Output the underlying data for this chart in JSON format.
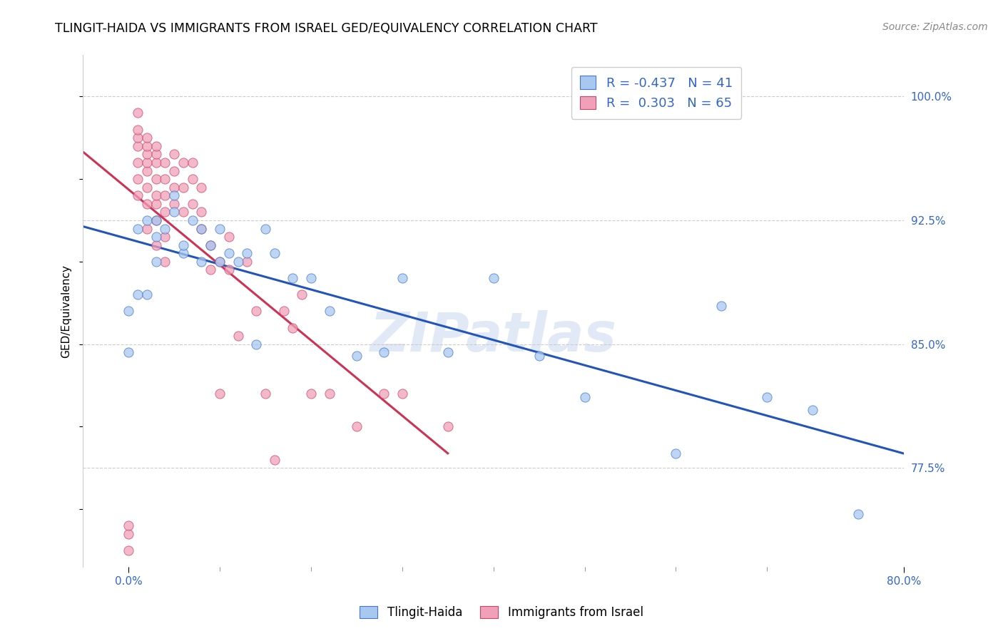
{
  "title": "TLINGIT-HAIDA VS IMMIGRANTS FROM ISRAEL GED/EQUIVALENCY CORRELATION CHART",
  "source": "Source: ZipAtlas.com",
  "ylabel": "GED/Equivalency",
  "legend_labels": [
    "Tlingit-Haida",
    "Immigrants from Israel"
  ],
  "legend_R": [
    "-0.437",
    "0.303"
  ],
  "legend_N": [
    "41",
    "65"
  ],
  "blue_fill": "#A8C8F0",
  "blue_edge": "#4477CC",
  "pink_fill": "#F0A0B8",
  "pink_edge": "#CC4466",
  "blue_line": "#2255BB",
  "pink_line": "#CC3355",
  "watermark": "ZIPatlas",
  "xlim": [
    -0.005,
    0.085
  ],
  "ylim": [
    0.715,
    1.025
  ],
  "x_tick_vals": [
    0.0,
    0.02,
    0.04,
    0.06,
    0.08
  ],
  "x_tick_labels": [
    "0.0%",
    "",
    "",
    "",
    ""
  ],
  "y_tick_vals": [
    0.775,
    0.85,
    0.925,
    1.0
  ],
  "y_tick_labels": [
    "77.5%",
    "85.0%",
    "92.5%",
    "100.0%"
  ],
  "tlingit_x": [
    0.0,
    0.0,
    0.001,
    0.001,
    0.002,
    0.002,
    0.003,
    0.003,
    0.003,
    0.004,
    0.005,
    0.005,
    0.006,
    0.006,
    0.007,
    0.008,
    0.008,
    0.009,
    0.01,
    0.01,
    0.011,
    0.012,
    0.013,
    0.014,
    0.015,
    0.016,
    0.018,
    0.02,
    0.022,
    0.025,
    0.028,
    0.03,
    0.035,
    0.04,
    0.045,
    0.05,
    0.06,
    0.065,
    0.07,
    0.075,
    0.08
  ],
  "tlingit_y": [
    0.845,
    0.87,
    0.92,
    0.88,
    0.925,
    0.88,
    0.9,
    0.915,
    0.925,
    0.92,
    0.94,
    0.93,
    0.905,
    0.91,
    0.925,
    0.9,
    0.92,
    0.91,
    0.9,
    0.92,
    0.905,
    0.9,
    0.905,
    0.85,
    0.92,
    0.905,
    0.89,
    0.89,
    0.87,
    0.843,
    0.845,
    0.89,
    0.845,
    0.89,
    0.843,
    0.818,
    0.784,
    0.873,
    0.818,
    0.81,
    0.747
  ],
  "israel_x": [
    0.0,
    0.0,
    0.0,
    0.001,
    0.001,
    0.001,
    0.001,
    0.001,
    0.001,
    0.001,
    0.002,
    0.002,
    0.002,
    0.002,
    0.002,
    0.002,
    0.002,
    0.002,
    0.003,
    0.003,
    0.003,
    0.003,
    0.003,
    0.003,
    0.003,
    0.003,
    0.004,
    0.004,
    0.004,
    0.004,
    0.004,
    0.004,
    0.005,
    0.005,
    0.005,
    0.005,
    0.006,
    0.006,
    0.006,
    0.007,
    0.007,
    0.007,
    0.008,
    0.008,
    0.008,
    0.009,
    0.009,
    0.01,
    0.01,
    0.011,
    0.011,
    0.012,
    0.013,
    0.014,
    0.015,
    0.016,
    0.017,
    0.018,
    0.019,
    0.02,
    0.022,
    0.025,
    0.028,
    0.03,
    0.035
  ],
  "israel_y": [
    0.725,
    0.735,
    0.74,
    0.94,
    0.95,
    0.96,
    0.97,
    0.975,
    0.98,
    0.99,
    0.92,
    0.935,
    0.945,
    0.955,
    0.96,
    0.965,
    0.97,
    0.975,
    0.91,
    0.925,
    0.935,
    0.94,
    0.95,
    0.96,
    0.965,
    0.97,
    0.9,
    0.915,
    0.93,
    0.94,
    0.95,
    0.96,
    0.935,
    0.945,
    0.955,
    0.965,
    0.93,
    0.945,
    0.96,
    0.935,
    0.95,
    0.96,
    0.92,
    0.93,
    0.945,
    0.895,
    0.91,
    0.82,
    0.9,
    0.895,
    0.915,
    0.855,
    0.9,
    0.87,
    0.82,
    0.78,
    0.87,
    0.86,
    0.88,
    0.82,
    0.82,
    0.8,
    0.82,
    0.82,
    0.8
  ]
}
